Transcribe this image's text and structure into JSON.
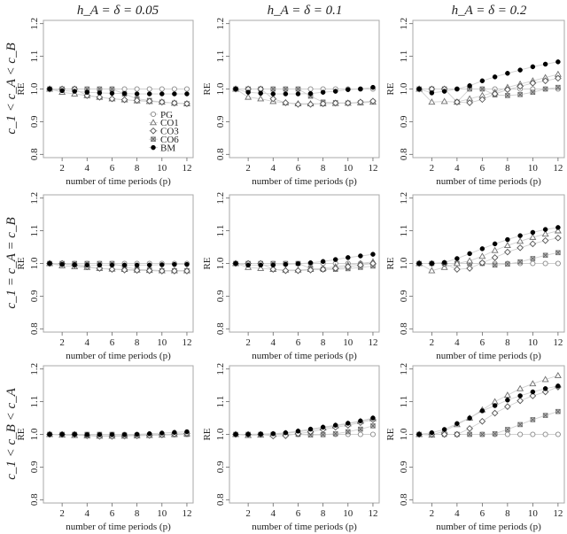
{
  "chart_data": {
    "type": "scatter",
    "layout": "3x3 grid",
    "column_titles": [
      "h_A = δ = 0.05",
      "h_A = δ = 0.1",
      "h_A = δ = 0.2"
    ],
    "row_labels": [
      "c_1 < c_A < c_B",
      "c_1 = c_A = c_B",
      "c_1 < c_B < c_A"
    ],
    "xlabel": "number of time periods (p)",
    "ylabel": "RE",
    "x": [
      1,
      2,
      3,
      4,
      5,
      6,
      7,
      8,
      9,
      10,
      11,
      12
    ],
    "xticks": [
      "2",
      "4",
      "6",
      "8",
      "10",
      "12"
    ],
    "xtick_values": [
      2,
      4,
      6,
      8,
      10,
      12
    ],
    "yticks": [
      "0.8",
      "0.9",
      "1.0",
      "1.1",
      "1.2"
    ],
    "ytick_values": [
      0.8,
      0.9,
      1.0,
      1.1,
      1.2
    ],
    "xlim": [
      0.5,
      12.5
    ],
    "ylim": [
      0.79,
      1.21
    ],
    "grid": false,
    "legend": {
      "placement": "bottom-right",
      "panel": "row 1, column 1",
      "entries": [
        {
          "name": "PG",
          "marker": "open-circle"
        },
        {
          "name": "CO1",
          "marker": "open-triangle"
        },
        {
          "name": "CO3",
          "marker": "open-diamond"
        },
        {
          "name": "CO6",
          "marker": "crossed-square"
        },
        {
          "name": "BM",
          "marker": "filled-circle"
        }
      ]
    },
    "panels": [
      {
        "row": 0,
        "col": 0,
        "series": [
          {
            "name": "PG",
            "values": [
              1.0,
              1.0,
              1.0,
              1.0,
              1.0,
              1.0,
              1.0,
              1.0,
              1.0,
              1.0,
              1.0,
              1.0
            ]
          },
          {
            "name": "CO1",
            "values": [
              1.0,
              0.99,
              0.985,
              0.98,
              0.975,
              0.97,
              0.967,
              0.964,
              0.962,
              0.96,
              0.957,
              0.955
            ]
          },
          {
            "name": "CO3",
            "values": [
              1.0,
              1.0,
              1.0,
              0.98,
              0.975,
              0.97,
              0.967,
              0.965,
              0.963,
              0.96,
              0.957,
              0.955
            ]
          },
          {
            "name": "CO6",
            "values": [
              1.0,
              1.0,
              1.0,
              1.0,
              1.0,
              1.0,
              0.985,
              0.97,
              0.965,
              0.96,
              0.957,
              0.955
            ]
          },
          {
            "name": "BM",
            "values": [
              1.0,
              0.995,
              0.993,
              0.99,
              0.988,
              0.987,
              0.986,
              0.985,
              0.985,
              0.985,
              0.985,
              0.985
            ]
          }
        ]
      },
      {
        "row": 0,
        "col": 1,
        "series": [
          {
            "name": "PG",
            "values": [
              1.0,
              1.0,
              1.0,
              1.0,
              1.0,
              1.0,
              1.0,
              1.0,
              1.0,
              1.0,
              1.0,
              1.0
            ]
          },
          {
            "name": "CO1",
            "values": [
              1.0,
              0.975,
              0.97,
              0.962,
              0.958,
              0.955,
              0.955,
              0.955,
              0.956,
              0.957,
              0.958,
              0.96
            ]
          },
          {
            "name": "CO3",
            "values": [
              1.0,
              1.0,
              1.0,
              0.97,
              0.958,
              0.953,
              0.953,
              0.955,
              0.957,
              0.957,
              0.96,
              0.963
            ]
          },
          {
            "name": "CO6",
            "values": [
              1.0,
              1.0,
              1.0,
              1.0,
              1.0,
              1.0,
              0.978,
              0.96,
              0.958,
              0.957,
              0.958,
              0.96
            ]
          },
          {
            "name": "BM",
            "values": [
              1.0,
              0.99,
              0.987,
              0.985,
              0.985,
              0.985,
              0.986,
              0.99,
              0.993,
              0.998,
              1.0,
              1.005
            ]
          }
        ]
      },
      {
        "row": 0,
        "col": 2,
        "series": [
          {
            "name": "PG",
            "values": [
              1.0,
              1.0,
              1.0,
              1.0,
              1.0,
              1.0,
              1.0,
              1.0,
              1.0,
              1.0,
              1.0,
              1.0
            ]
          },
          {
            "name": "CO1",
            "values": [
              1.0,
              0.96,
              0.962,
              0.96,
              0.97,
              0.98,
              0.99,
              1.005,
              1.015,
              1.025,
              1.035,
              1.045
            ]
          },
          {
            "name": "CO3",
            "values": [
              1.0,
              1.0,
              1.0,
              0.96,
              0.958,
              0.968,
              0.985,
              0.998,
              1.008,
              1.018,
              1.025,
              1.033
            ]
          },
          {
            "name": "CO6",
            "values": [
              1.0,
              1.0,
              1.0,
              0.96,
              1.0,
              1.0,
              0.982,
              0.98,
              0.983,
              0.99,
              1.0,
              1.005
            ]
          },
          {
            "name": "BM",
            "values": [
              1.0,
              0.988,
              0.993,
              1.0,
              1.01,
              1.025,
              1.037,
              1.048,
              1.058,
              1.068,
              1.076,
              1.083
            ]
          }
        ]
      },
      {
        "row": 1,
        "col": 0,
        "series": [
          {
            "name": "PG",
            "values": [
              1.0,
              1.0,
              1.0,
              1.0,
              1.0,
              1.0,
              1.0,
              1.0,
              1.0,
              1.0,
              1.0,
              1.0
            ]
          },
          {
            "name": "CO1",
            "values": [
              1.0,
              0.993,
              0.99,
              0.988,
              0.985,
              0.983,
              0.982,
              0.98,
              0.979,
              0.978,
              0.978,
              0.978
            ]
          },
          {
            "name": "CO3",
            "values": [
              1.0,
              1.0,
              0.995,
              0.99,
              0.985,
              0.982,
              0.98,
              0.979,
              0.978,
              0.977,
              0.977,
              0.977
            ]
          },
          {
            "name": "CO6",
            "values": [
              1.0,
              1.0,
              1.0,
              1.0,
              1.0,
              1.0,
              0.99,
              0.982,
              0.98,
              0.978,
              0.978,
              0.978
            ]
          },
          {
            "name": "BM",
            "values": [
              1.0,
              0.997,
              0.996,
              0.995,
              0.995,
              0.995,
              0.995,
              0.995,
              0.995,
              0.996,
              0.997,
              0.997
            ]
          }
        ]
      },
      {
        "row": 1,
        "col": 1,
        "series": [
          {
            "name": "PG",
            "values": [
              1.0,
              1.0,
              1.0,
              1.0,
              1.0,
              1.0,
              1.0,
              1.0,
              1.0,
              1.0,
              1.0,
              1.0
            ]
          },
          {
            "name": "CO1",
            "values": [
              1.0,
              0.988,
              0.985,
              0.982,
              0.98,
              0.98,
              0.982,
              0.985,
              0.99,
              0.995,
              1.0,
              1.005
            ]
          },
          {
            "name": "CO3",
            "values": [
              1.0,
              1.0,
              1.0,
              0.982,
              0.978,
              0.978,
              0.98,
              0.982,
              0.985,
              0.99,
              0.995,
              1.0
            ]
          },
          {
            "name": "CO6",
            "values": [
              1.0,
              1.0,
              1.0,
              1.0,
              1.0,
              1.0,
              0.985,
              0.982,
              0.982,
              0.984,
              0.988,
              0.992
            ]
          },
          {
            "name": "BM",
            "values": [
              1.0,
              0.995,
              0.995,
              0.995,
              0.997,
              0.999,
              1.002,
              1.006,
              1.012,
              1.018,
              1.023,
              1.028
            ]
          }
        ]
      },
      {
        "row": 1,
        "col": 2,
        "series": [
          {
            "name": "PG",
            "values": [
              1.0,
              1.0,
              1.0,
              1.0,
              1.0,
              1.0,
              1.0,
              1.0,
              1.0,
              1.0,
              1.0,
              1.0
            ]
          },
          {
            "name": "CO1",
            "values": [
              1.0,
              0.978,
              0.988,
              1.0,
              1.008,
              1.022,
              1.04,
              1.055,
              1.068,
              1.08,
              1.09,
              1.1
            ]
          },
          {
            "name": "CO3",
            "values": [
              1.0,
              1.0,
              1.0,
              0.982,
              0.985,
              1.002,
              1.018,
              1.035,
              1.048,
              1.06,
              1.07,
              1.078
            ]
          },
          {
            "name": "CO6",
            "values": [
              1.0,
              1.0,
              1.0,
              1.0,
              1.0,
              1.0,
              0.995,
              0.998,
              1.005,
              1.015,
              1.025,
              1.033
            ]
          },
          {
            "name": "BM",
            "values": [
              1.0,
              1.0,
              1.003,
              1.015,
              1.03,
              1.045,
              1.06,
              1.073,
              1.085,
              1.095,
              1.104,
              1.11
            ]
          }
        ]
      },
      {
        "row": 2,
        "col": 0,
        "series": [
          {
            "name": "PG",
            "values": [
              1.0,
              1.0,
              1.0,
              1.0,
              1.0,
              1.0,
              1.0,
              1.0,
              1.0,
              1.0,
              1.0,
              1.0
            ]
          },
          {
            "name": "CO1",
            "values": [
              1.0,
              0.998,
              0.997,
              0.996,
              0.995,
              0.995,
              0.995,
              0.996,
              0.997,
              0.998,
              1.0,
              1.002
            ]
          },
          {
            "name": "CO3",
            "values": [
              1.0,
              1.0,
              1.0,
              0.996,
              0.994,
              0.994,
              0.995,
              0.996,
              0.997,
              0.999,
              1.001,
              1.003
            ]
          },
          {
            "name": "CO6",
            "values": [
              1.0,
              1.0,
              1.0,
              1.0,
              1.0,
              1.0,
              0.998,
              0.997,
              0.997,
              0.998,
              0.999,
              1.0
            ]
          },
          {
            "name": "BM",
            "values": [
              1.0,
              1.0,
              1.0,
              0.999,
              0.999,
              0.999,
              0.999,
              1.0,
              1.002,
              1.004,
              1.006,
              1.008
            ]
          }
        ]
      },
      {
        "row": 2,
        "col": 1,
        "series": [
          {
            "name": "PG",
            "values": [
              1.0,
              1.0,
              1.0,
              1.0,
              1.0,
              1.0,
              1.0,
              1.0,
              1.0,
              1.0,
              1.0,
              1.0
            ]
          },
          {
            "name": "CO1",
            "values": [
              1.0,
              0.997,
              0.998,
              1.0,
              1.003,
              1.008,
              1.013,
              1.02,
              1.026,
              1.032,
              1.04,
              1.048
            ]
          },
          {
            "name": "CO3",
            "values": [
              1.0,
              1.0,
              1.0,
              0.995,
              0.996,
              1.002,
              1.008,
              1.015,
              1.022,
              1.028,
              1.036,
              1.045
            ]
          },
          {
            "name": "CO6",
            "values": [
              1.0,
              1.0,
              1.0,
              1.0,
              1.0,
              1.0,
              0.998,
              0.999,
              1.002,
              1.008,
              1.016,
              1.026
            ]
          },
          {
            "name": "BM",
            "values": [
              1.0,
              1.0,
              1.001,
              1.002,
              1.005,
              1.01,
              1.016,
              1.022,
              1.028,
              1.034,
              1.041,
              1.05
            ]
          }
        ]
      },
      {
        "row": 2,
        "col": 2,
        "series": [
          {
            "name": "PG",
            "values": [
              1.0,
              1.0,
              1.0,
              1.0,
              1.0,
              1.0,
              1.0,
              1.0,
              1.0,
              1.0,
              1.0,
              1.0
            ]
          },
          {
            "name": "CO1",
            "values": [
              1.0,
              0.998,
              1.01,
              1.03,
              1.05,
              1.075,
              1.1,
              1.12,
              1.14,
              1.155,
              1.168,
              1.18
            ]
          },
          {
            "name": "CO3",
            "values": [
              1.0,
              1.0,
              1.0,
              1.0,
              1.018,
              1.04,
              1.065,
              1.085,
              1.103,
              1.118,
              1.13,
              1.145
            ]
          },
          {
            "name": "CO6",
            "values": [
              1.0,
              1.0,
              1.0,
              1.0,
              1.0,
              1.0,
              1.002,
              1.015,
              1.03,
              1.045,
              1.058,
              1.07
            ]
          },
          {
            "name": "BM",
            "values": [
              1.0,
              1.005,
              1.015,
              1.033,
              1.05,
              1.072,
              1.088,
              1.105,
              1.118,
              1.13,
              1.14,
              1.148
            ]
          }
        ]
      }
    ]
  },
  "colors": {
    "frame": "#a8a8a8",
    "line": "#d0d0d0",
    "PG": "#8a8a8a",
    "CO1": "#6e6e6e",
    "CO3": "#555555",
    "CO6": "#7a7a7a",
    "BM": "#000000"
  }
}
